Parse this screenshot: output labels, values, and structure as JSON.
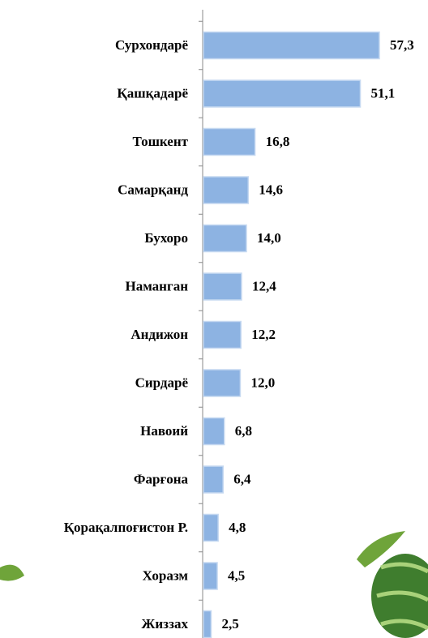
{
  "chart_data": {
    "type": "bar",
    "orientation": "horizontal",
    "categories": [
      "Сурхондарё",
      "Қашқадарё",
      "Тошкент",
      "Самарқанд",
      "Бухоро",
      "Наманган",
      "Андижон",
      "Сирдарё",
      "Навоий",
      "Фарғона",
      "Қорақалпоғистон Р.",
      "Хоразм",
      "Жиззах"
    ],
    "values": [
      57.3,
      51.1,
      16.8,
      14.6,
      14.0,
      12.4,
      12.2,
      12.0,
      6.8,
      6.4,
      4.8,
      4.5,
      2.5
    ],
    "value_labels": [
      "57,3",
      "51,1",
      "16,8",
      "14,6",
      "14,0",
      "12,4",
      "12,2",
      "12,0",
      "6,8",
      "6,4",
      "4,8",
      "4,5",
      "2,5"
    ],
    "color": "#8db3e2"
  }
}
